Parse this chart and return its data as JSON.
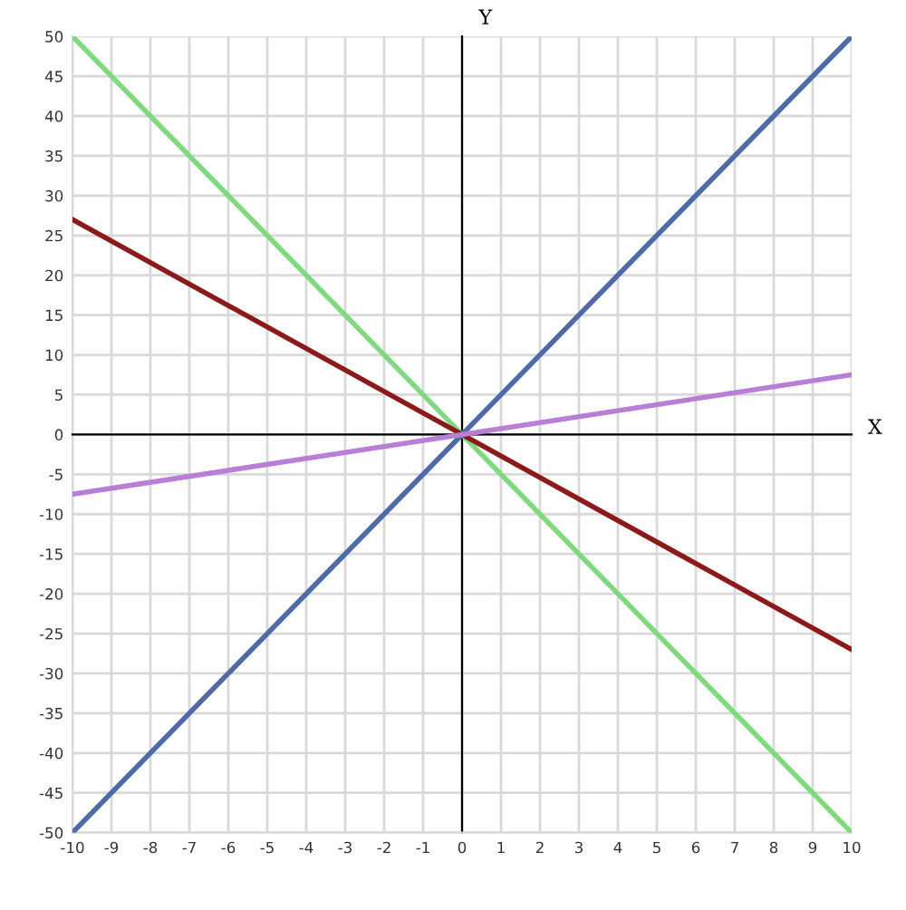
{
  "chart_data": {
    "type": "line",
    "xlabel": "X",
    "ylabel": "Y",
    "x": [
      -10,
      0,
      10
    ],
    "series": [
      {
        "color": "#7fd97f",
        "values": [
          50,
          0,
          -50
        ]
      },
      {
        "color": "#8b1a1a",
        "values": [
          27,
          0,
          -27
        ]
      },
      {
        "color": "#4f6aa8",
        "values": [
          -50,
          0,
          50
        ]
      },
      {
        "color": "#b77fd6",
        "values": [
          -7.5,
          0,
          7.5
        ]
      }
    ],
    "xlim": [
      -10,
      10
    ],
    "ylim": [
      -50,
      50
    ],
    "xticks": [
      -10,
      -9,
      -8,
      -7,
      -6,
      -5,
      -4,
      -3,
      -2,
      -1,
      0,
      1,
      2,
      3,
      4,
      5,
      6,
      7,
      8,
      9,
      10
    ],
    "yticks": [
      -50,
      -45,
      -40,
      -35,
      -30,
      -25,
      -20,
      -15,
      -10,
      -5,
      0,
      5,
      10,
      15,
      20,
      25,
      30,
      35,
      40,
      45,
      50
    ],
    "grid": true,
    "marker": "none",
    "line_style": "solid"
  }
}
